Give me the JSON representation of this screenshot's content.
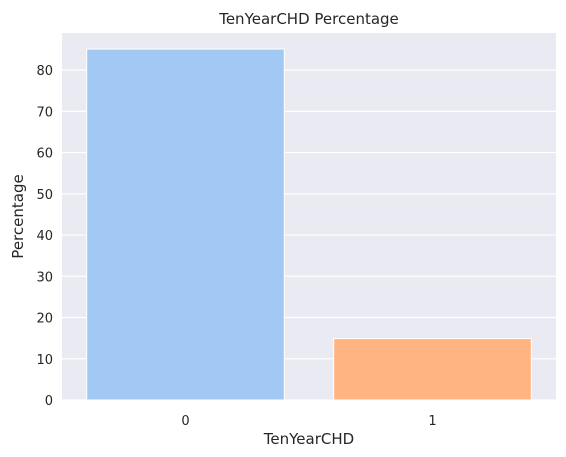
{
  "chart_data": {
    "type": "bar",
    "title": "TenYearCHD Percentage",
    "xlabel": "TenYearCHD",
    "ylabel": "Percentage",
    "categories": [
      "0",
      "1"
    ],
    "values": [
      85.1,
      14.9
    ],
    "ylim": [
      0,
      89
    ],
    "yticks": [
      0,
      10,
      20,
      30,
      40,
      50,
      60,
      70,
      80
    ],
    "colors": [
      "#a1c9f4",
      "#ffb482"
    ],
    "background": "#eaeaf2",
    "grid": true
  }
}
